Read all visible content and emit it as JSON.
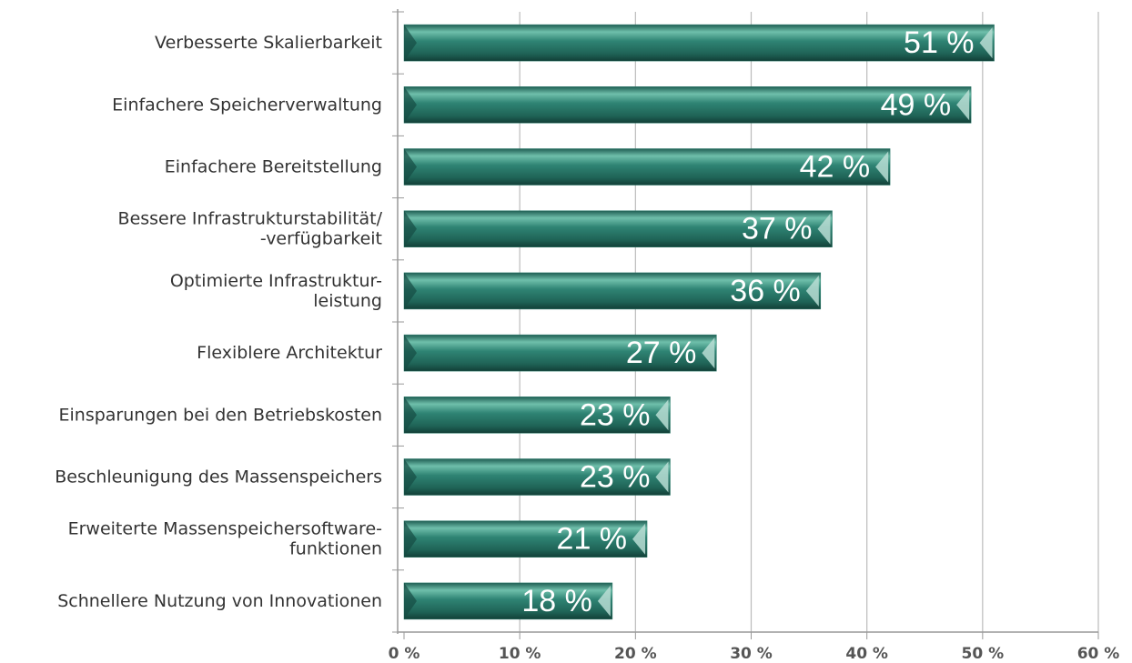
{
  "chart_data": {
    "type": "hbar",
    "categories": [
      [
        "Verbesserte Skalierbarkeit"
      ],
      [
        "Einfachere Speicherverwaltung"
      ],
      [
        "Einfachere Bereitstellung"
      ],
      [
        "Bessere Infrastrukturstabilität/",
        "-verfügbarkeit"
      ],
      [
        "Optimierte Infrastruktur-",
        "leistung"
      ],
      [
        "Flexiblere Architektur"
      ],
      [
        "Einsparungen bei den Betriebskosten"
      ],
      [
        "Beschleunigung des Massenspeichers"
      ],
      [
        "Erweiterte Massenspeichersoftware-",
        "funktionen"
      ],
      [
        "Schnellere Nutzung von Innovationen"
      ]
    ],
    "values": [
      51,
      49,
      42,
      37,
      36,
      27,
      23,
      23,
      21,
      18
    ],
    "value_labels": [
      "51 %",
      "49 %",
      "42 %",
      "37 %",
      "36 %",
      "27 %",
      "23 %",
      "23 %",
      "21 %",
      "18 %"
    ],
    "color": "#2a7a6a",
    "xlim": [
      0,
      60
    ],
    "xticks": [
      {
        "value": 0,
        "label": "0 %"
      },
      {
        "value": 10,
        "label": "10 %"
      },
      {
        "value": 20,
        "label": "20 %"
      },
      {
        "value": 30,
        "label": "30 %"
      },
      {
        "value": 40,
        "label": "40 %"
      },
      {
        "value": 50,
        "label": "50 %"
      },
      {
        "value": 60,
        "label": "60 %"
      }
    ],
    "grid": true
  }
}
